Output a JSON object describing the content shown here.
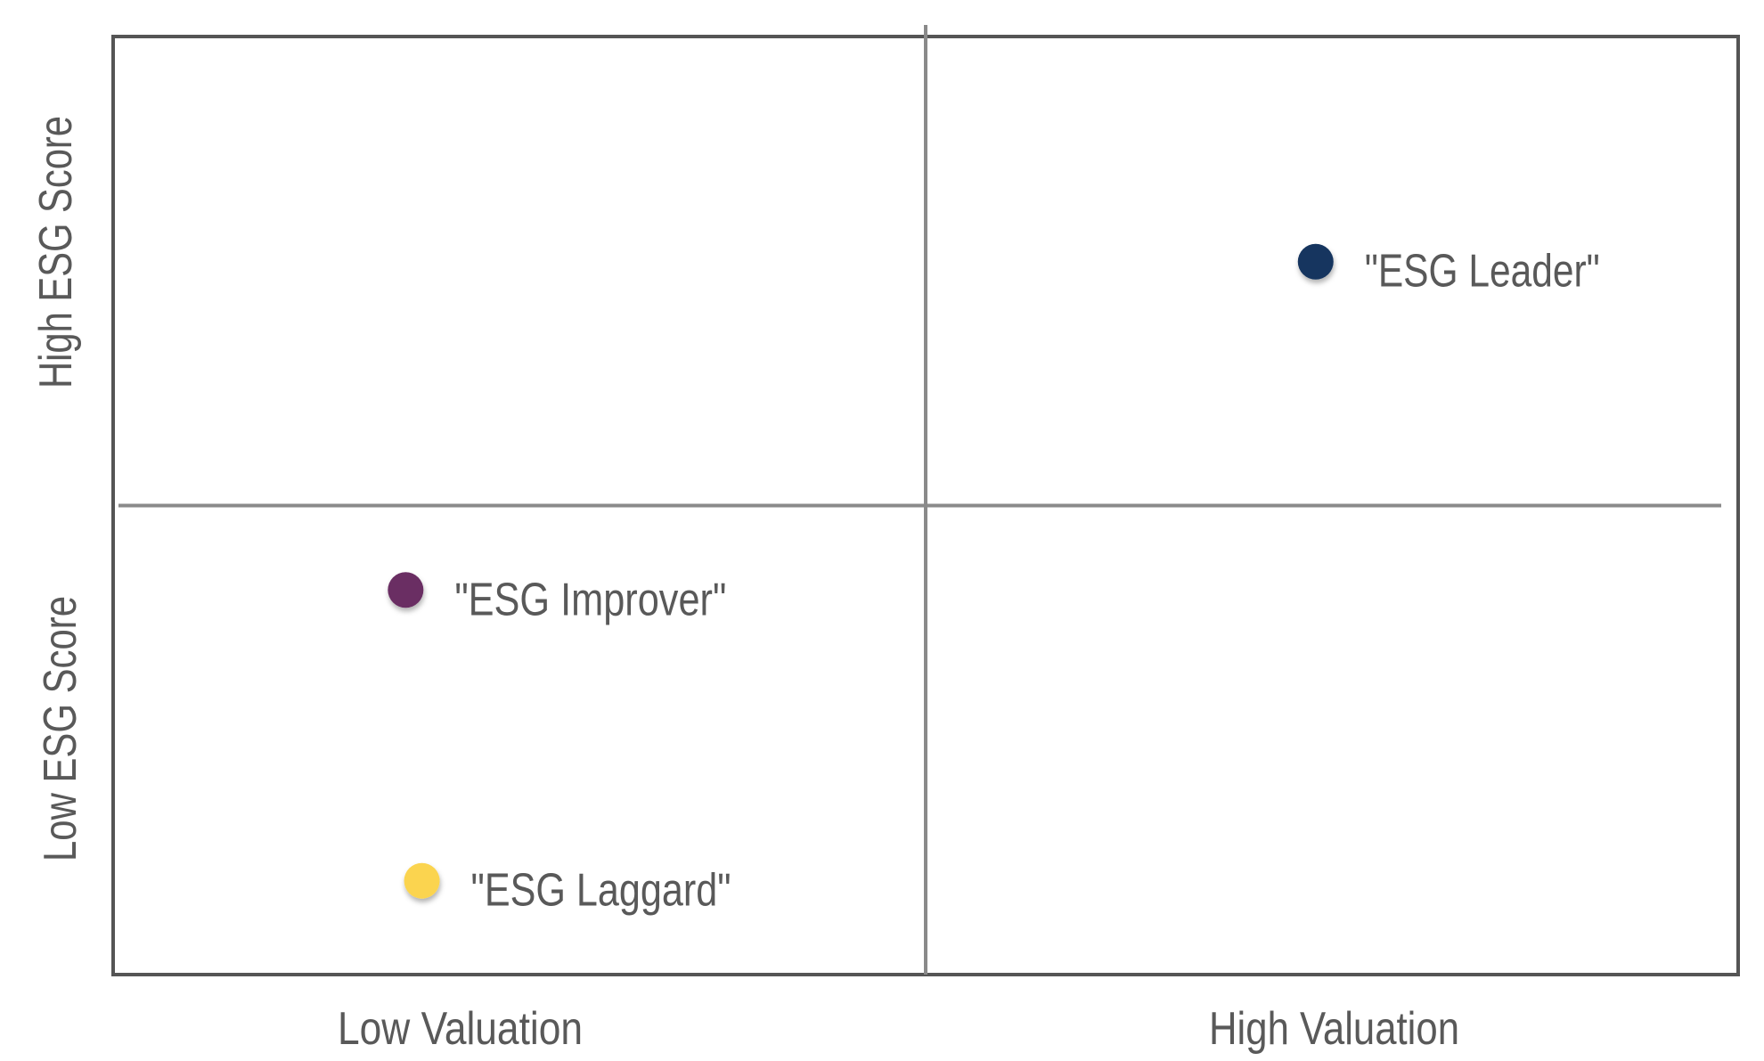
{
  "chart_data": {
    "type": "scatter",
    "title": "",
    "xlim": [
      0,
      10
    ],
    "ylim": [
      0,
      10
    ],
    "grid": false,
    "quadrant_dividers": {
      "x": 5,
      "y": 5
    },
    "x_category_labels": [
      "Low Valuation",
      "High Valuation"
    ],
    "y_category_labels": [
      "Low ESG Score",
      "High ESG Score"
    ],
    "points": [
      {
        "label": "\"ESG Leader\"",
        "x": 7.4,
        "y": 7.6,
        "color": "#13345e"
      },
      {
        "label": "\"ESG Improver\"",
        "x": 1.8,
        "y": 4.1,
        "color": "#6b2d63"
      },
      {
        "label": "\"ESG Laggard\"",
        "x": 1.9,
        "y": 1.0,
        "color": "#fbd44f"
      }
    ]
  },
  "colors": {
    "text": "#595959",
    "frame": "#555555",
    "divider": "#8a8a8a"
  }
}
